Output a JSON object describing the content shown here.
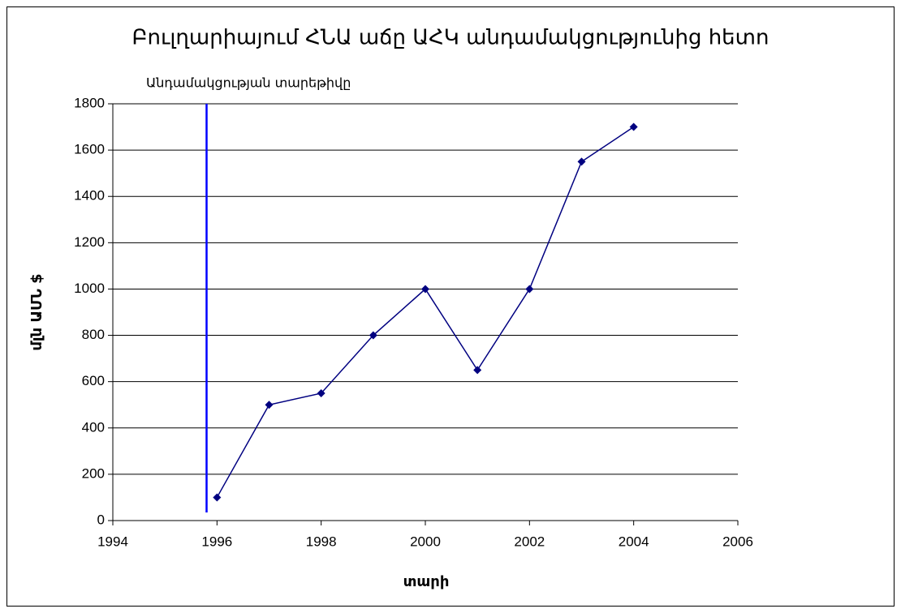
{
  "chart_data": {
    "type": "line",
    "title": "Բուլղարիայում ՀՆԱ աճը ԱՀԿ անդամակցությունից հետո",
    "annotation": "Անդամակցության տարեթիվը",
    "annotation_line": {
      "x": 1995.8,
      "ylim": [
        35,
        1800
      ],
      "color": "#0000ff"
    },
    "xlabel": "տարի",
    "ylabel": "մլն ԱՄՆ $",
    "x": [
      1996,
      1997,
      1998,
      1999,
      2000,
      2001,
      2002,
      2003,
      2004
    ],
    "series": [
      {
        "color": "#000080",
        "values": [
          100,
          500,
          550,
          800,
          1000,
          650,
          1000,
          1550,
          1700
        ]
      }
    ],
    "xlim": [
      1994,
      2006
    ],
    "xticks": [
      1994,
      1996,
      1998,
      2000,
      2002,
      2004,
      2006
    ],
    "ylim": [
      0,
      1800
    ],
    "yticks": [
      0,
      200,
      400,
      600,
      800,
      1000,
      1200,
      1400,
      1600,
      1800
    ],
    "grid": true
  }
}
